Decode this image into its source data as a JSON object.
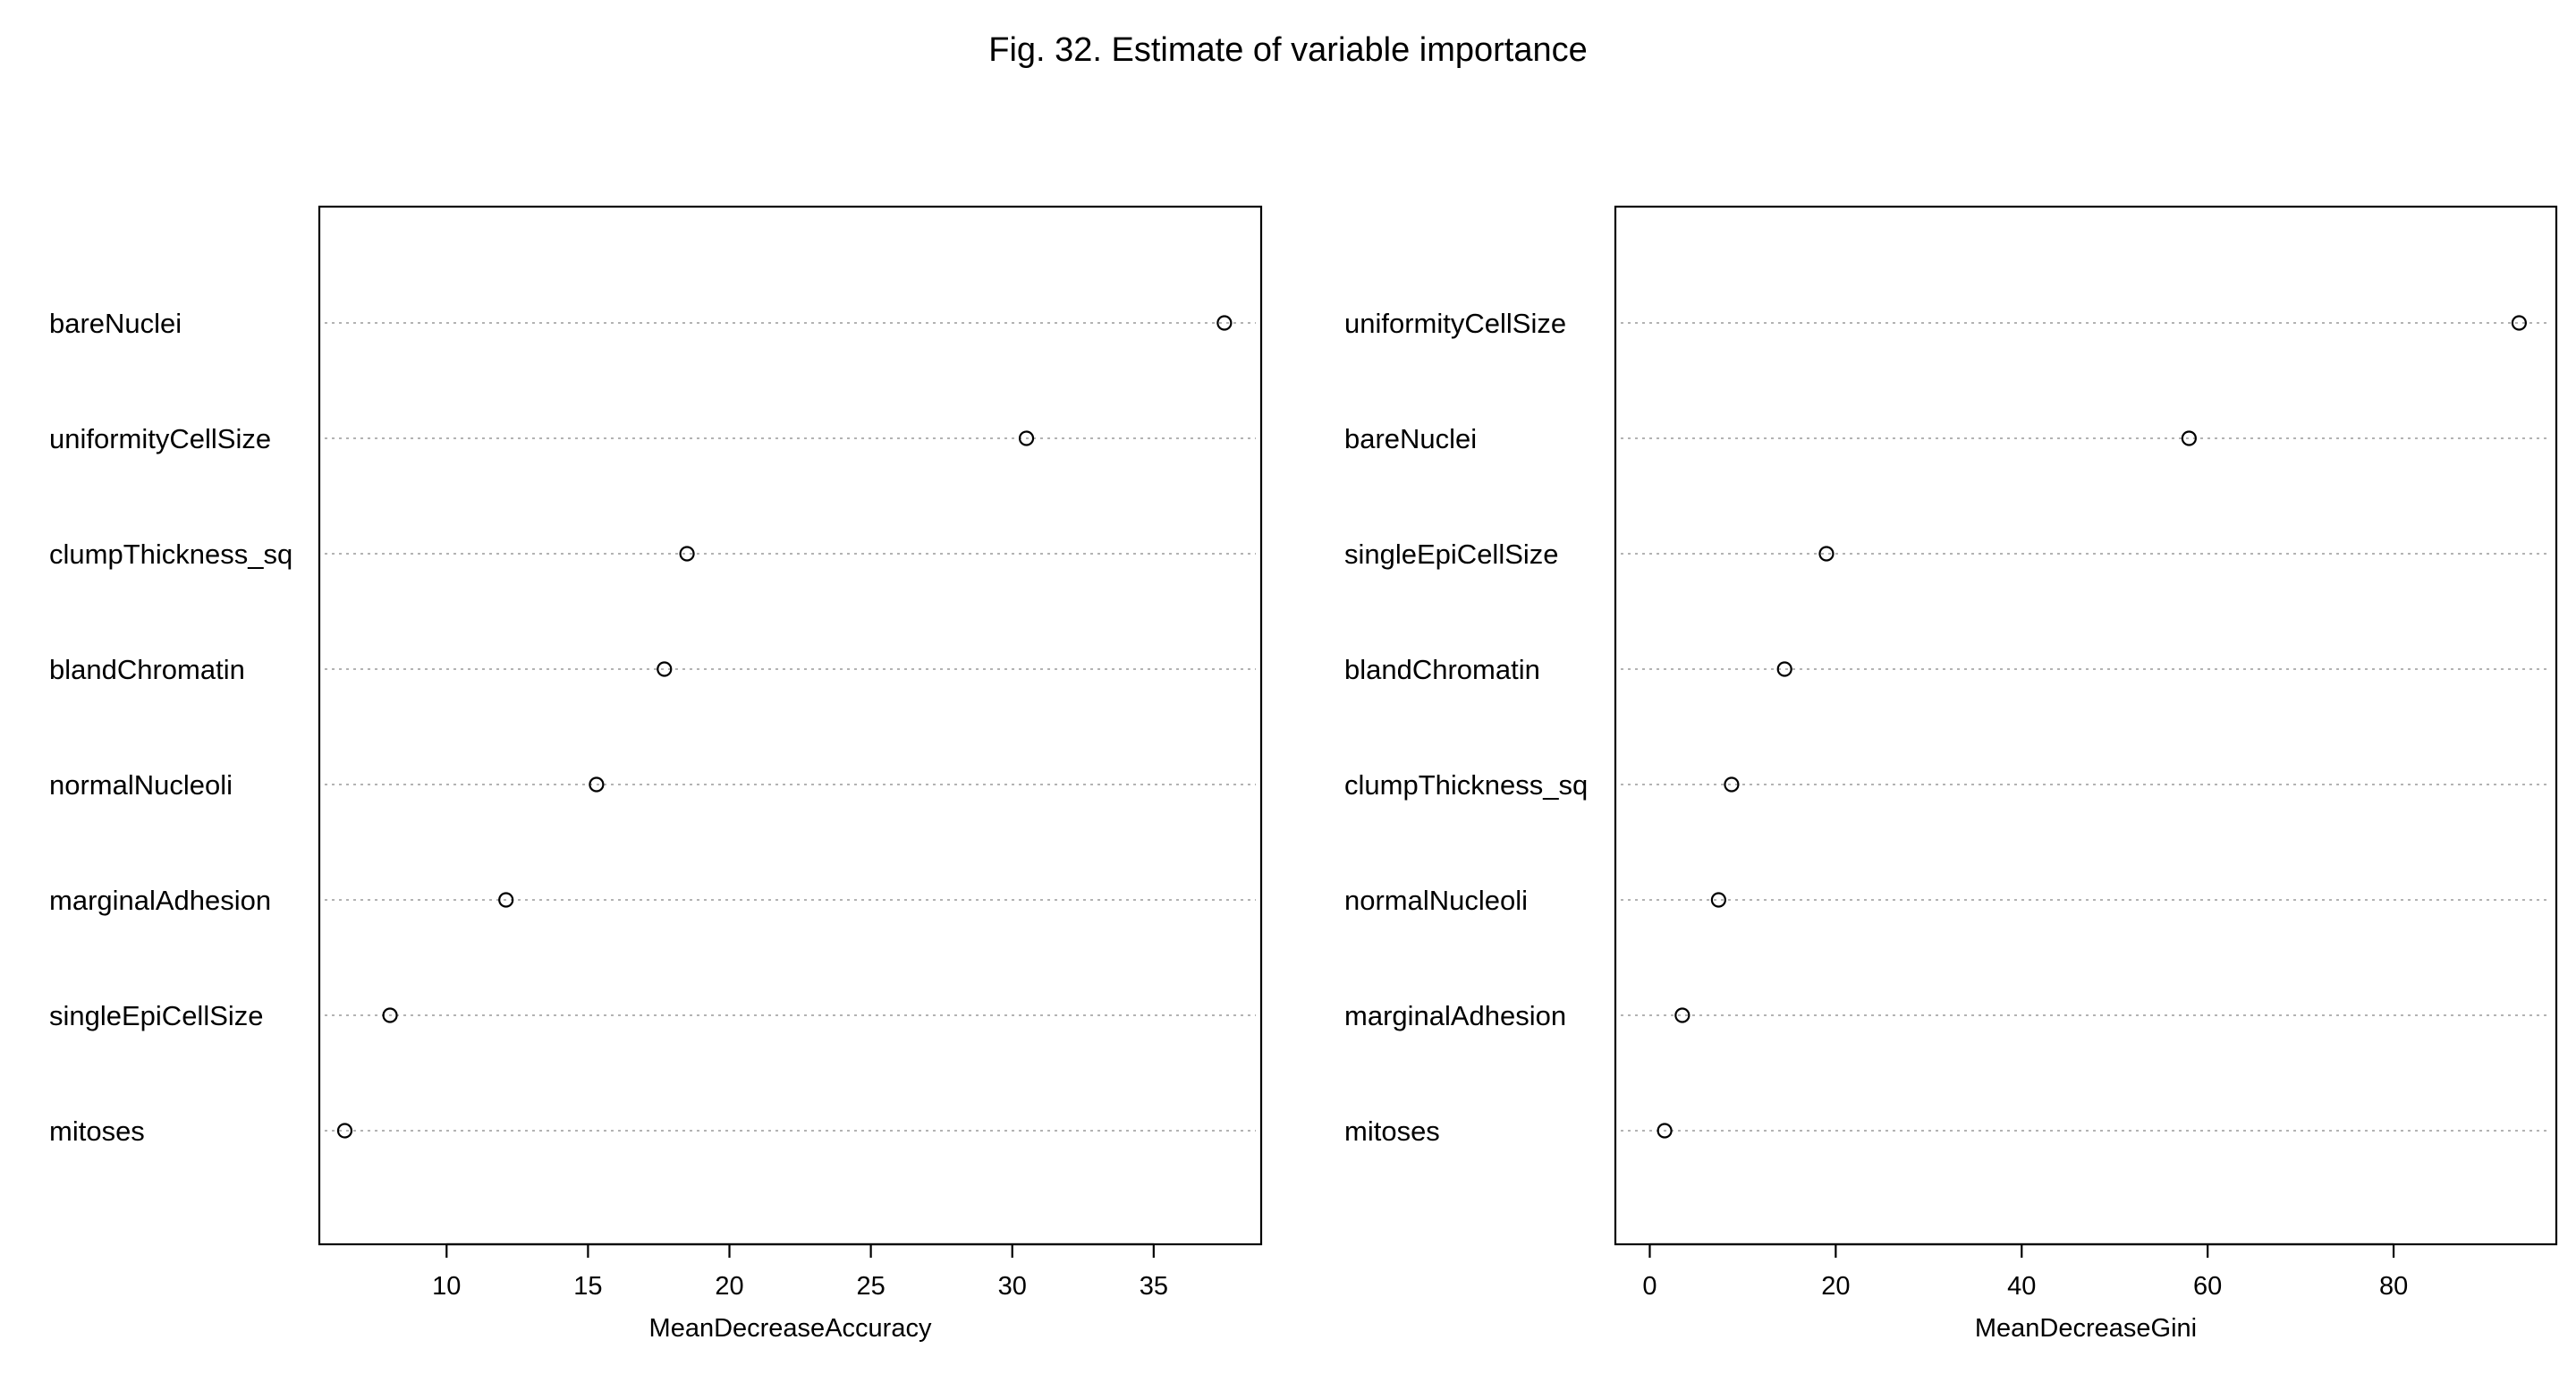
{
  "figure_title": "Fig. 32. Estimate of variable importance",
  "chart_data": [
    {
      "type": "scatter",
      "variant": "dotchart",
      "xlabel": "MeanDecreaseAccuracy",
      "ylabel": "",
      "xlim": [
        5.5,
        38.8
      ],
      "xticks": [
        10,
        15,
        20,
        25,
        30,
        35
      ],
      "grid": "dotted horizontal per category",
      "categories": [
        "bareNuclei",
        "uniformityCellSize",
        "clumpThickness_sq",
        "blandChromatin",
        "normalNucleoli",
        "marginalAdhesion",
        "singleEpiCellSize",
        "mitoses"
      ],
      "values": [
        37.5,
        30.5,
        18.5,
        17.7,
        15.3,
        12.1,
        8.0,
        6.4
      ]
    },
    {
      "type": "scatter",
      "variant": "dotchart",
      "xlabel": "MeanDecreaseGini",
      "ylabel": "",
      "xlim": [
        -3.7,
        97.5
      ],
      "xticks": [
        0,
        20,
        40,
        60,
        80
      ],
      "grid": "dotted horizontal per category",
      "categories": [
        "uniformityCellSize",
        "bareNuclei",
        "singleEpiCellSize",
        "blandChromatin",
        "clumpThickness_sq",
        "normalNucleoli",
        "marginalAdhesion",
        "mitoses"
      ],
      "values": [
        93.5,
        58.0,
        19.0,
        14.5,
        8.8,
        7.4,
        3.5,
        1.6
      ]
    }
  ]
}
